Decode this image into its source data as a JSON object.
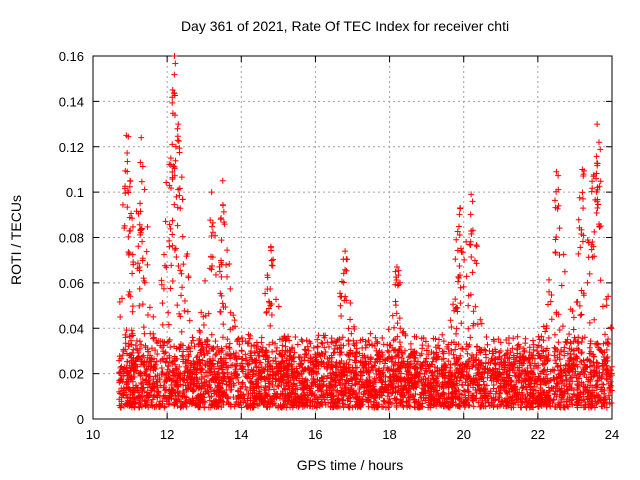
{
  "chart_data": {
    "type": "scatter",
    "title": "Day 361 of 2021, Rate Of TEC Index for receiver chti",
    "xlabel": "GPS time / hours",
    "ylabel": "ROTI / TECUs",
    "xlim": [
      10,
      24
    ],
    "ylim": [
      0,
      0.16
    ],
    "xticks": [
      10,
      12,
      14,
      16,
      18,
      20,
      22,
      24
    ],
    "yticks": [
      0,
      0.02,
      0.04,
      0.06,
      0.08,
      0.1,
      0.12,
      0.14,
      0.16
    ],
    "ytick_labels": [
      "0",
      "0.02",
      "0.04",
      "0.06",
      "0.08",
      "0.1",
      "0.12",
      "0.14",
      "0.16"
    ],
    "grid": true,
    "marker": "+",
    "color": "#ff0000",
    "series": [
      {
        "name": "ROTI",
        "x_range": [
          10.7,
          24.0
        ],
        "peaks": [
          {
            "x": 10.9,
            "y": 0.125
          },
          {
            "x": 11.0,
            "y": 0.105
          },
          {
            "x": 11.3,
            "y": 0.124
          },
          {
            "x": 12.1,
            "y": 0.115
          },
          {
            "x": 12.15,
            "y": 0.145
          },
          {
            "x": 12.2,
            "y": 0.16
          },
          {
            "x": 12.3,
            "y": 0.13
          },
          {
            "x": 13.2,
            "y": 0.1
          },
          {
            "x": 13.5,
            "y": 0.105
          },
          {
            "x": 14.8,
            "y": 0.076
          },
          {
            "x": 16.8,
            "y": 0.074
          },
          {
            "x": 18.2,
            "y": 0.067
          },
          {
            "x": 19.9,
            "y": 0.093
          },
          {
            "x": 20.2,
            "y": 0.099
          },
          {
            "x": 22.5,
            "y": 0.109
          },
          {
            "x": 23.2,
            "y": 0.11
          },
          {
            "x": 23.5,
            "y": 0.107
          },
          {
            "x": 23.6,
            "y": 0.13
          },
          {
            "x": 23.65,
            "y": 0.122
          }
        ],
        "baseline_band": [
          0.005,
          0.035
        ]
      }
    ]
  }
}
